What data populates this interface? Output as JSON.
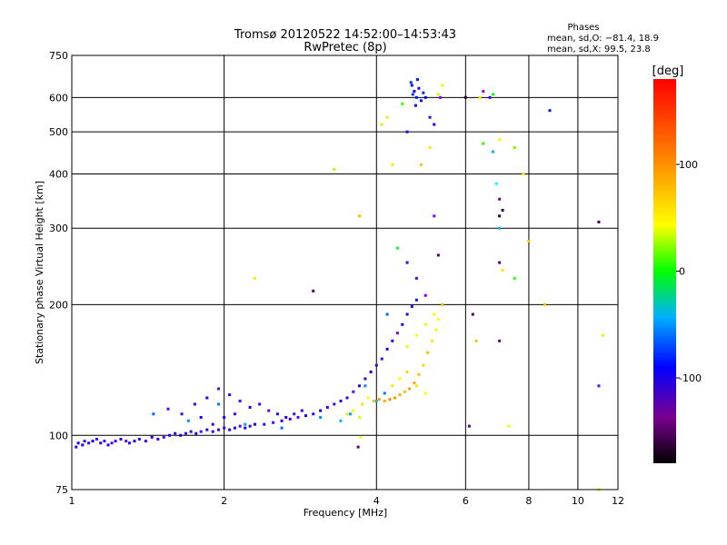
{
  "chart_data": {
    "type": "scatter",
    "title": "Tromsø 20120522 14:52:00–14:53:43",
    "subtitle": "RwPretec (8p)",
    "phases_block": {
      "heading": "Phases",
      "line_o": "mean, sd,O: −81.4, 18.9",
      "line_x": "mean, sd,X:  99.5, 23.8"
    },
    "xlabel": "Frequency [MHz]",
    "ylabel": "Stationary phase Virtual Height [km]",
    "x_scale": "log",
    "y_scale": "log",
    "xlim": [
      1,
      12
    ],
    "ylim": [
      75,
      750
    ],
    "x_ticks": [
      1,
      2,
      4,
      6,
      8,
      10,
      12
    ],
    "x_tick_labels": [
      "1",
      "2",
      "4",
      "6",
      "8",
      "10",
      "12"
    ],
    "y_ticks": [
      75,
      100,
      200,
      300,
      400,
      500,
      600,
      750
    ],
    "y_tick_labels": [
      "75",
      "100",
      "200",
      "300",
      "400",
      "500",
      "600",
      "750"
    ],
    "grid": true,
    "colorbar": {
      "label": "[deg]",
      "range": [
        -180,
        180
      ],
      "ticks": [
        -100,
        0,
        100
      ],
      "tick_labels": [
        "-100",
        "0",
        "100"
      ]
    },
    "series": [
      {
        "values_are": "phase_deg",
        "points": [
          [
            1.02,
            94,
            -100
          ],
          [
            1.03,
            96,
            -95
          ],
          [
            1.05,
            95,
            -90
          ],
          [
            1.06,
            97,
            -105
          ],
          [
            1.08,
            96,
            -100
          ],
          [
            1.1,
            97,
            -92
          ],
          [
            1.12,
            98,
            -110
          ],
          [
            1.14,
            96,
            -98
          ],
          [
            1.16,
            97,
            -100
          ],
          [
            1.18,
            95,
            -95
          ],
          [
            1.2,
            96,
            -105
          ],
          [
            1.22,
            97,
            -100
          ],
          [
            1.25,
            98,
            -95
          ],
          [
            1.28,
            97,
            -110
          ],
          [
            1.3,
            96,
            -100
          ],
          [
            1.33,
            97,
            -90
          ],
          [
            1.36,
            98,
            -100
          ],
          [
            1.4,
            97,
            -105
          ],
          [
            1.44,
            99,
            -95
          ],
          [
            1.48,
            98,
            -100
          ],
          [
            1.52,
            99,
            -110
          ],
          [
            1.56,
            100,
            -95
          ],
          [
            1.6,
            101,
            -100
          ],
          [
            1.64,
            100,
            -90
          ],
          [
            1.68,
            101,
            -105
          ],
          [
            1.72,
            102,
            -100
          ],
          [
            1.76,
            101,
            -95
          ],
          [
            1.8,
            102,
            -110
          ],
          [
            1.85,
            103,
            -100
          ],
          [
            1.9,
            102,
            -95
          ],
          [
            1.95,
            103,
            -100
          ],
          [
            2.0,
            104,
            -105
          ],
          [
            2.05,
            103,
            -95
          ],
          [
            2.1,
            104,
            -100
          ],
          [
            2.15,
            105,
            -110
          ],
          [
            2.2,
            104,
            -95
          ],
          [
            2.25,
            105,
            -100
          ],
          [
            2.3,
            106,
            -90
          ],
          [
            2.4,
            106,
            -100
          ],
          [
            2.5,
            107,
            -105
          ],
          [
            2.6,
            108,
            -95
          ],
          [
            2.7,
            109,
            -100
          ],
          [
            2.8,
            110,
            -110
          ],
          [
            2.9,
            111,
            -95
          ],
          [
            3.0,
            112,
            -100
          ],
          [
            3.1,
            114,
            -90
          ],
          [
            3.2,
            116,
            -100
          ],
          [
            3.3,
            118,
            -105
          ],
          [
            3.4,
            120,
            -95
          ],
          [
            3.5,
            122,
            -100
          ],
          [
            3.6,
            126,
            -110
          ],
          [
            3.7,
            130,
            -95
          ],
          [
            3.8,
            135,
            -100
          ],
          [
            3.9,
            140,
            -90
          ],
          [
            4.0,
            145,
            -100
          ],
          [
            4.1,
            150,
            -105
          ],
          [
            4.2,
            158,
            -95
          ],
          [
            4.3,
            165,
            -100
          ],
          [
            4.4,
            172,
            -110
          ],
          [
            4.5,
            180,
            -95
          ],
          [
            4.6,
            190,
            -100
          ],
          [
            4.7,
            198,
            -95
          ],
          [
            4.8,
            205,
            -80
          ],
          [
            1.55,
            115,
            -110
          ],
          [
            1.65,
            112,
            -105
          ],
          [
            1.75,
            118,
            -100
          ],
          [
            1.85,
            122,
            -95
          ],
          [
            1.95,
            128,
            -110
          ],
          [
            2.05,
            124,
            -100
          ],
          [
            2.15,
            120,
            -105
          ],
          [
            2.25,
            116,
            -95
          ],
          [
            2.35,
            118,
            -100
          ],
          [
            2.45,
            114,
            -110
          ],
          [
            2.55,
            112,
            -100
          ],
          [
            2.65,
            110,
            -95
          ],
          [
            2.75,
            112,
            -105
          ],
          [
            2.85,
            114,
            -100
          ],
          [
            1.8,
            110,
            -90
          ],
          [
            1.9,
            106,
            -100
          ],
          [
            2.0,
            110,
            -95
          ],
          [
            2.1,
            112,
            -105
          ],
          [
            1.45,
            112,
            -60
          ],
          [
            1.7,
            108,
            -50
          ],
          [
            1.95,
            118,
            -55
          ],
          [
            2.2,
            106,
            -45
          ],
          [
            2.6,
            104,
            -60
          ],
          [
            3.1,
            110,
            -50
          ],
          [
            3.4,
            108,
            -40
          ],
          [
            3.55,
            112,
            -45
          ],
          [
            3.8,
            130,
            -50
          ],
          [
            4.0,
            120,
            -40
          ],
          [
            4.15,
            125,
            -55
          ],
          [
            3.5,
            112,
            100
          ],
          [
            3.6,
            114,
            110
          ],
          [
            3.7,
            110,
            105
          ],
          [
            3.75,
            118,
            120
          ],
          [
            3.85,
            122,
            115
          ],
          [
            3.95,
            120,
            130
          ],
          [
            4.05,
            121,
            140
          ],
          [
            4.15,
            120,
            135
          ],
          [
            4.25,
            121,
            145
          ],
          [
            4.35,
            122,
            140
          ],
          [
            4.45,
            124,
            135
          ],
          [
            4.55,
            126,
            130
          ],
          [
            4.65,
            128,
            140
          ],
          [
            4.75,
            132,
            135
          ],
          [
            4.85,
            138,
            130
          ],
          [
            4.95,
            145,
            125
          ],
          [
            5.05,
            155,
            130
          ],
          [
            5.15,
            165,
            120
          ],
          [
            5.25,
            175,
            115
          ],
          [
            5.3,
            185,
            110
          ],
          [
            4.3,
            130,
            120
          ],
          [
            4.45,
            135,
            115
          ],
          [
            4.6,
            140,
            125
          ],
          [
            4.8,
            130,
            120
          ],
          [
            5.0,
            125,
            115
          ],
          [
            4.6,
            160,
            110
          ],
          [
            4.8,
            170,
            115
          ],
          [
            5.0,
            180,
            105
          ],
          [
            5.2,
            190,
            110
          ],
          [
            3.72,
            99,
            110
          ],
          [
            3.68,
            94,
            -150
          ],
          [
            4.7,
            640,
            -85
          ],
          [
            4.75,
            620,
            -90
          ],
          [
            4.8,
            600,
            -80
          ],
          [
            4.85,
            630,
            -95
          ],
          [
            4.72,
            610,
            -70
          ],
          [
            4.9,
            590,
            -85
          ],
          [
            4.95,
            615,
            -75
          ],
          [
            4.78,
            575,
            -90
          ],
          [
            4.82,
            660,
            -80
          ],
          [
            4.68,
            650,
            -70
          ],
          [
            5.0,
            600,
            -85
          ],
          [
            5.1,
            540,
            -100
          ],
          [
            5.2,
            520,
            -90
          ],
          [
            4.6,
            500,
            -95
          ],
          [
            5.3,
            610,
            100
          ],
          [
            5.4,
            640,
            110
          ],
          [
            5.35,
            600,
            -120
          ],
          [
            4.2,
            540,
            120
          ],
          [
            4.1,
            520,
            100
          ],
          [
            4.3,
            420,
            120
          ],
          [
            4.5,
            580,
            60
          ],
          [
            4.9,
            420,
            130
          ],
          [
            5.1,
            460,
            120
          ],
          [
            5.2,
            320,
            -120
          ],
          [
            5.3,
            260,
            -160
          ],
          [
            4.4,
            270,
            40
          ],
          [
            4.6,
            250,
            -100
          ],
          [
            4.8,
            230,
            -110
          ],
          [
            5.0,
            210,
            -120
          ],
          [
            5.4,
            200,
            130
          ],
          [
            6.0,
            600,
            -180
          ],
          [
            6.5,
            620,
            -130
          ],
          [
            6.7,
            600,
            -100
          ],
          [
            6.8,
            610,
            40
          ],
          [
            6.4,
            600,
            120
          ],
          [
            6.5,
            470,
            60
          ],
          [
            6.8,
            450,
            -40
          ],
          [
            7.0,
            480,
            110
          ],
          [
            7.5,
            460,
            80
          ],
          [
            7.8,
            400,
            120
          ],
          [
            6.9,
            380,
            -20
          ],
          [
            7.0,
            350,
            -140
          ],
          [
            7.1,
            330,
            -170
          ],
          [
            7.0,
            320,
            -180
          ],
          [
            7.0,
            300,
            -40
          ],
          [
            7.0,
            250,
            -160
          ],
          [
            7.1,
            240,
            120
          ],
          [
            7.5,
            230,
            60
          ],
          [
            8.0,
            280,
            130
          ],
          [
            8.6,
            200,
            130
          ],
          [
            8.8,
            560,
            -80
          ],
          [
            11.0,
            310,
            -160
          ],
          [
            11.0,
            130,
            -110
          ],
          [
            11.2,
            170,
            120
          ],
          [
            11.0,
            75,
            100
          ],
          [
            6.2,
            190,
            -160
          ],
          [
            6.1,
            105,
            -150
          ],
          [
            6.3,
            165,
            130
          ],
          [
            7.0,
            165,
            -140
          ],
          [
            7.3,
            105,
            110
          ],
          [
            2.3,
            230,
            120
          ],
          [
            3.0,
            215,
            -150
          ],
          [
            3.3,
            410,
            90
          ],
          [
            3.7,
            320,
            130
          ],
          [
            4.2,
            190,
            -60
          ]
        ]
      }
    ]
  }
}
